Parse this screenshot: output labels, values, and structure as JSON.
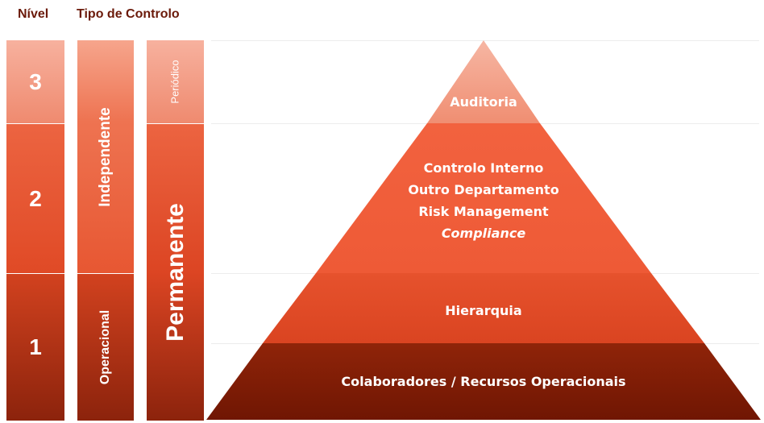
{
  "headers": {
    "nivel": "Nível",
    "tipo": "Tipo de Controlo"
  },
  "levels": [
    {
      "number": "3",
      "color": "#f4a18a"
    },
    {
      "number": "2",
      "color": "#e8532f"
    },
    {
      "number": "1",
      "color": "#c0391a"
    }
  ],
  "control_type": {
    "independente": "Independente",
    "operacional": "Operacional",
    "periodico": "Periódico",
    "permanente": "Permanente"
  },
  "pyramid": {
    "tiers": [
      {
        "lines": [
          "Auditoria"
        ],
        "color": "#f4a18a"
      },
      {
        "lines": [
          "Controlo Interno",
          "Outro Departamento",
          "Risk Management",
          "Compliance"
        ],
        "color": "#f26141"
      },
      {
        "lines": [
          "Hierarquia"
        ],
        "color": "#e24a27"
      },
      {
        "lines": [
          "Colaboradores / Recursos Operacionais"
        ],
        "color": "#7d1a05"
      }
    ]
  }
}
